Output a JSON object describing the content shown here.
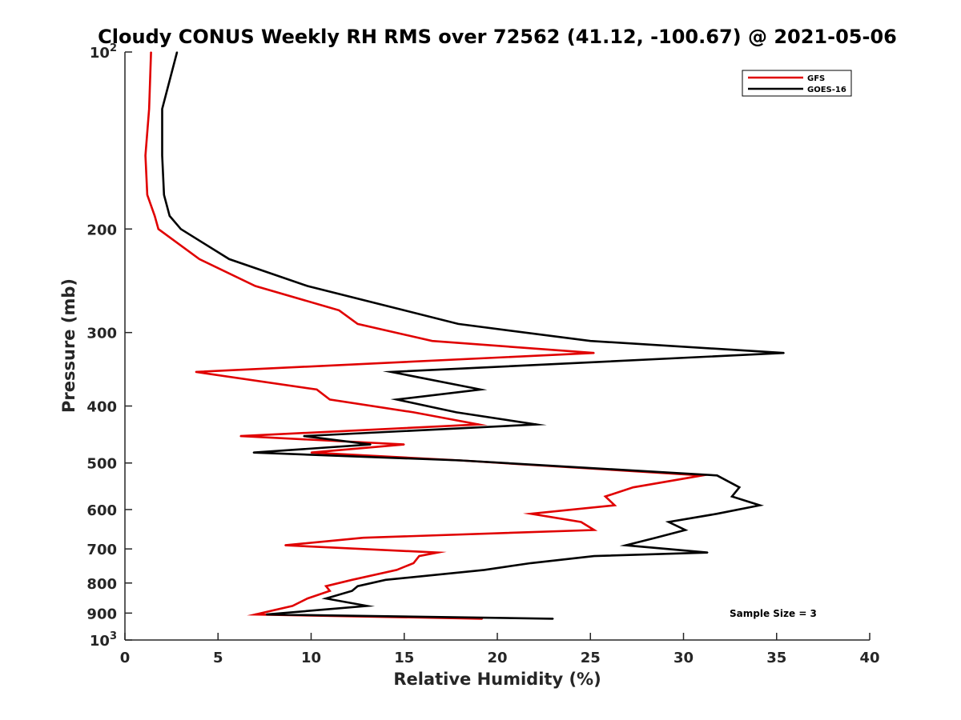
{
  "chart_data": {
    "type": "line",
    "title": "Cloudy CONUS Weekly RH RMS over 72562 (41.12, -100.67) @ 2021-05-06",
    "xlabel": "Relative Humidity (%)",
    "ylabel": "Pressure (mb)",
    "xlim": [
      0,
      40
    ],
    "ylim": [
      100,
      1000
    ],
    "y_scale": "log",
    "y_reversed": true,
    "x_ticks": [
      "0",
      "5",
      "10",
      "15",
      "20",
      "25",
      "30",
      "35",
      "40"
    ],
    "y_ticks": [
      {
        "value": 100,
        "base": "10",
        "exp": "2"
      },
      {
        "value": 200,
        "label": "200"
      },
      {
        "value": 300,
        "label": "300"
      },
      {
        "value": 400,
        "label": "400"
      },
      {
        "value": 500,
        "label": "500"
      },
      {
        "value": 600,
        "label": "600"
      },
      {
        "value": 700,
        "label": "700"
      },
      {
        "value": 800,
        "label": "800"
      },
      {
        "value": 900,
        "label": "900"
      },
      {
        "value": 1000,
        "base": "10",
        "exp": "3"
      }
    ],
    "grid": false,
    "legend_position": "top-right",
    "annotation": "Sample Size = 3",
    "series": [
      {
        "name": "GFS",
        "color": "#e00000",
        "points": [
          [
            1.4,
            100
          ],
          [
            1.3,
            125
          ],
          [
            1.1,
            150
          ],
          [
            1.2,
            175
          ],
          [
            1.6,
            190
          ],
          [
            1.8,
            200
          ],
          [
            4.0,
            225
          ],
          [
            7.0,
            250
          ],
          [
            11.5,
            275
          ],
          [
            12.5,
            290
          ],
          [
            16.5,
            310
          ],
          [
            25.2,
            325
          ],
          [
            3.8,
            350
          ],
          [
            10.3,
            375
          ],
          [
            11.0,
            390
          ],
          [
            15.5,
            410
          ],
          [
            19.0,
            430
          ],
          [
            6.2,
            450
          ],
          [
            15.0,
            465
          ],
          [
            10.0,
            480
          ],
          [
            18.0,
            495
          ],
          [
            31.0,
            525
          ],
          [
            27.3,
            550
          ],
          [
            25.8,
            570
          ],
          [
            26.3,
            590
          ],
          [
            21.8,
            610
          ],
          [
            24.5,
            630
          ],
          [
            25.2,
            650
          ],
          [
            12.8,
            670
          ],
          [
            8.6,
            690
          ],
          [
            16.8,
            710
          ],
          [
            15.8,
            720
          ],
          [
            15.5,
            740
          ],
          [
            14.6,
            760
          ],
          [
            12.2,
            790
          ],
          [
            10.8,
            810
          ],
          [
            11.0,
            825
          ],
          [
            9.8,
            850
          ],
          [
            9.0,
            875
          ],
          [
            7.0,
            905
          ],
          [
            19.2,
            920
          ]
        ]
      },
      {
        "name": "GOES-16",
        "color": "#000000",
        "points": [
          [
            2.8,
            100
          ],
          [
            2.0,
            125
          ],
          [
            2.0,
            150
          ],
          [
            2.1,
            175
          ],
          [
            2.4,
            190
          ],
          [
            3.0,
            200
          ],
          [
            5.6,
            225
          ],
          [
            9.8,
            250
          ],
          [
            15.0,
            275
          ],
          [
            17.9,
            290
          ],
          [
            25.0,
            310
          ],
          [
            35.4,
            325
          ],
          [
            14.3,
            350
          ],
          [
            19.1,
            375
          ],
          [
            14.6,
            390
          ],
          [
            17.8,
            410
          ],
          [
            22.1,
            430
          ],
          [
            9.6,
            450
          ],
          [
            13.2,
            465
          ],
          [
            6.9,
            480
          ],
          [
            18.0,
            495
          ],
          [
            31.8,
            525
          ],
          [
            33.0,
            550
          ],
          [
            32.6,
            570
          ],
          [
            34.1,
            590
          ],
          [
            31.8,
            610
          ],
          [
            29.2,
            630
          ],
          [
            30.1,
            650
          ],
          [
            28.5,
            670
          ],
          [
            26.9,
            690
          ],
          [
            31.3,
            710
          ],
          [
            25.2,
            720
          ],
          [
            21.8,
            740
          ],
          [
            19.3,
            760
          ],
          [
            14.0,
            790
          ],
          [
            12.5,
            810
          ],
          [
            12.2,
            825
          ],
          [
            10.8,
            850
          ],
          [
            13.0,
            875
          ],
          [
            7.6,
            905
          ],
          [
            23.0,
            920
          ]
        ]
      }
    ]
  }
}
